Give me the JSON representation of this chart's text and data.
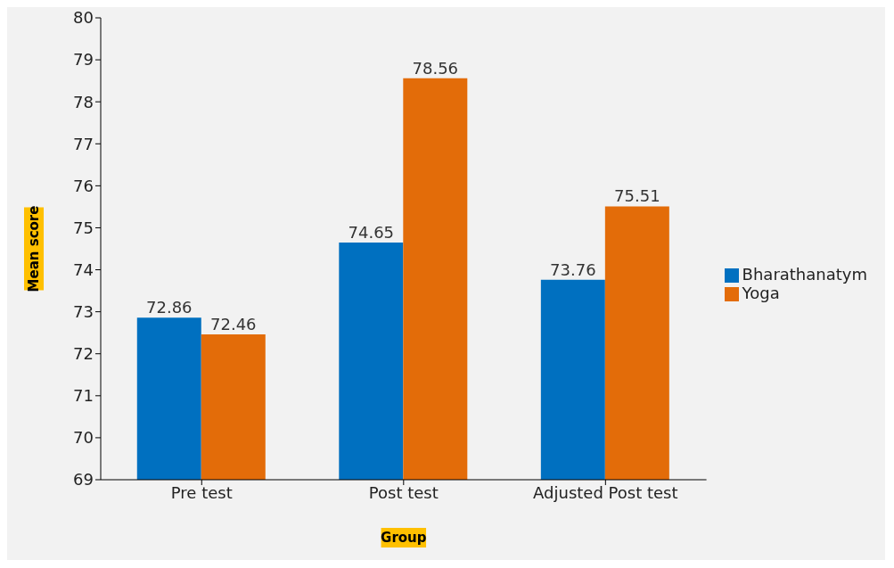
{
  "chart_data": {
    "type": "bar",
    "xlabel": "Group",
    "ylabel": "Mean score",
    "categories": [
      "Pre test",
      "Post test",
      "Adjusted Post test"
    ],
    "series": [
      {
        "name": "Bharathanatym",
        "color": "#0070c0",
        "values": [
          72.86,
          74.65,
          73.76
        ]
      },
      {
        "name": "Yoga",
        "color": "#e36c09",
        "values": [
          72.46,
          78.56,
          75.51
        ]
      }
    ],
    "ylim": [
      69,
      80
    ],
    "yticks": [
      69,
      70,
      71,
      72,
      73,
      74,
      75,
      76,
      77,
      78,
      79,
      80
    ],
    "data_labels": true,
    "legend": "right",
    "grid": false
  }
}
